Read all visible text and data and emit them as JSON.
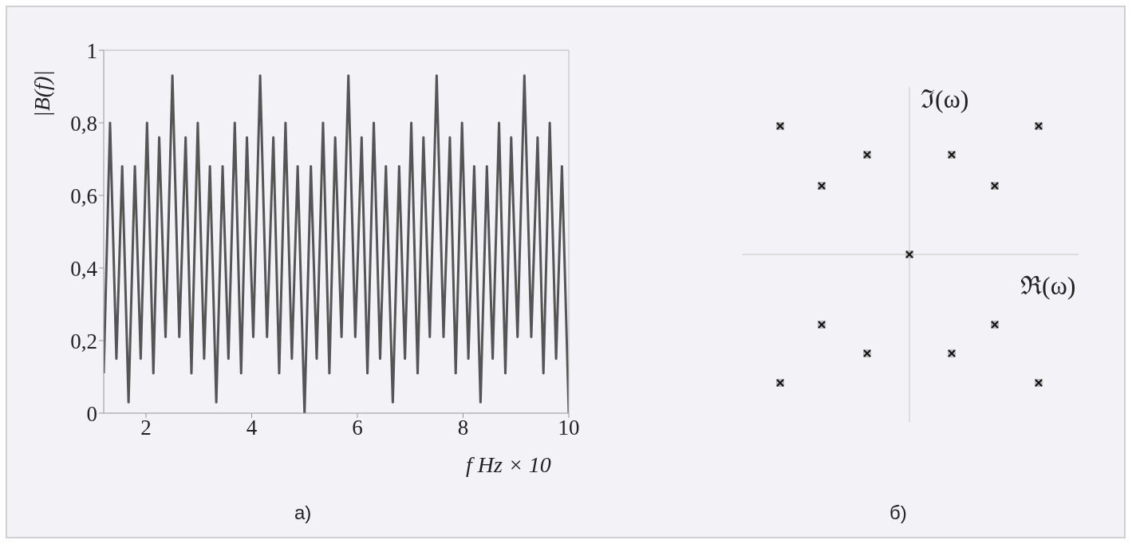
{
  "chart_data": [
    {
      "type": "line",
      "xlabel": "f Hz × 10",
      "ylabel": "|B(f)|",
      "annotations": [
        "а)"
      ],
      "color": "#555555",
      "marker": "none",
      "line_style": "solid",
      "xlim": [
        1.2,
        10
      ],
      "xticks": [
        2,
        4,
        6,
        8,
        10
      ],
      "ylim": [
        0,
        1
      ],
      "yticks": [
        0,
        {
          "value": 0.2,
          "label": "0,2"
        },
        {
          "value": 0.4,
          "label": "0,4"
        },
        {
          "value": 0.6,
          "label": "0,6"
        },
        {
          "value": 0.8,
          "label": "0,8"
        },
        1
      ],
      "x": [
        1.2,
        1.32,
        1.44,
        1.55,
        1.67,
        1.79,
        1.9,
        2.02,
        2.14,
        2.25,
        2.37,
        2.5,
        2.63,
        2.75,
        2.86,
        2.98,
        3.1,
        3.21,
        3.33,
        3.45,
        3.56,
        3.68,
        3.8,
        3.91,
        4.03,
        4.16,
        4.29,
        4.41,
        4.52,
        4.64,
        4.76,
        4.87,
        5.0,
        5.12,
        5.23,
        5.35,
        5.47,
        5.58,
        5.7,
        5.83,
        5.96,
        6.08,
        6.19,
        6.31,
        6.43,
        6.54,
        6.67,
        6.79,
        6.9,
        7.02,
        7.14,
        7.25,
        7.37,
        7.5,
        7.63,
        7.75,
        7.86,
        7.98,
        8.1,
        8.21,
        8.33,
        8.45,
        8.56,
        8.68,
        8.8,
        8.91,
        9.03,
        9.16,
        9.29,
        9.41,
        9.52,
        9.64,
        9.76,
        9.87,
        10
      ],
      "values": [
        0.11,
        0.8,
        0.15,
        0.68,
        0.03,
        0.68,
        0.15,
        0.8,
        0.11,
        0.76,
        0.21,
        0.93,
        0.21,
        0.76,
        0.11,
        0.8,
        0.15,
        0.68,
        0.03,
        0.68,
        0.15,
        0.8,
        0.11,
        0.76,
        0.21,
        0.93,
        0.21,
        0.76,
        0.11,
        0.8,
        0.15,
        0.68,
        0,
        0.68,
        0.15,
        0.8,
        0.11,
        0.76,
        0.21,
        0.93,
        0.21,
        0.76,
        0.11,
        0.8,
        0.15,
        0.68,
        0.03,
        0.68,
        0.15,
        0.8,
        0.11,
        0.76,
        0.21,
        0.93,
        0.21,
        0.76,
        0.11,
        0.8,
        0.15,
        0.68,
        0.03,
        0.68,
        0.15,
        0.8,
        0.11,
        0.76,
        0.21,
        0.93,
        0.21,
        0.76,
        0.11,
        0.8,
        0.15,
        0.68,
        0
      ]
    },
    {
      "type": "other",
      "xlabel": "ℜ(ω)",
      "ylabel": "ℑ(ω)",
      "annotations": [
        "б)"
      ]
    }
  ]
}
